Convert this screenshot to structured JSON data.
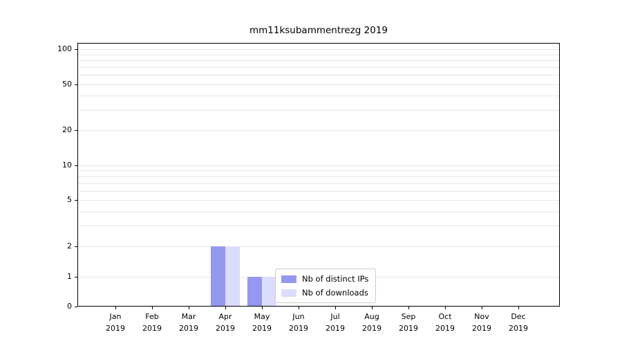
{
  "chart_data": {
    "type": "bar",
    "title": "mm11ksubammentrezg 2019",
    "x_tick_months": [
      "Jan",
      "Feb",
      "Mar",
      "Apr",
      "May",
      "Jun",
      "Jul",
      "Aug",
      "Sep",
      "Oct",
      "Nov",
      "Dec"
    ],
    "x_tick_year": "2019",
    "series": [
      {
        "name": "Nb of distinct IPs",
        "color": "#9598ee",
        "values": [
          0,
          0,
          0,
          2,
          1,
          0,
          0,
          0,
          0,
          0,
          0,
          0
        ]
      },
      {
        "name": "Nb of downloads",
        "color": "#dcdcfc",
        "values": [
          0,
          0,
          0,
          2,
          1,
          0,
          0,
          0,
          0,
          0,
          0,
          0
        ]
      }
    ],
    "yticks": [
      0,
      1,
      2,
      5,
      10,
      20,
      50,
      100
    ],
    "yscale": "symlog",
    "ylim": [
      0,
      115
    ],
    "grid": true,
    "legend_position": "lower-center"
  },
  "colors": {
    "grid": "#e6e6e6",
    "axis": "#000000",
    "background": "#ffffff"
  }
}
